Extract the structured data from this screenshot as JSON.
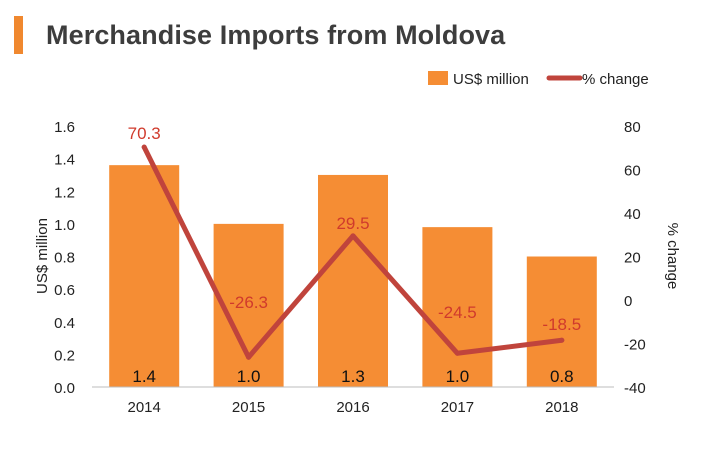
{
  "title": "Merchandise Imports from Moldova",
  "colors": {
    "accent": "#f0882f",
    "bar": "#f58d34",
    "line": "#c0443c",
    "line_label": "#d03a2c",
    "title": "#3d3d3d",
    "axis_text": "#222222"
  },
  "chart_data": {
    "type": "bar",
    "categories": [
      "2014",
      "2015",
      "2016",
      "2017",
      "2018"
    ],
    "series": [
      {
        "name": "US$ million",
        "type": "bar",
        "axis": "left",
        "values": [
          1.36,
          1.0,
          1.3,
          0.98,
          0.8
        ],
        "labels": [
          "1.4",
          "1.0",
          "1.3",
          "1.0",
          "0.8"
        ]
      },
      {
        "name": "% change",
        "type": "line",
        "axis": "right",
        "values": [
          70.3,
          -26.3,
          29.5,
          -24.5,
          -18.5
        ],
        "labels": [
          "70.3",
          "-26.3",
          "29.5",
          "-24.5",
          "-18.5"
        ]
      }
    ],
    "ylabel": "US$ million",
    "ylabel_right": "% change",
    "ylim": [
      0,
      1.6
    ],
    "ylim_right": [
      -40,
      80
    ],
    "yticks": [
      "0.0",
      "0.2",
      "0.4",
      "0.6",
      "0.8",
      "1.0",
      "1.2",
      "1.4",
      "1.6"
    ],
    "yticks_right": [
      "-40",
      "-20",
      "0",
      "20",
      "40",
      "60",
      "80"
    ],
    "legend": [
      {
        "label": "US$ million",
        "kind": "bar"
      },
      {
        "label": "% change",
        "kind": "line"
      }
    ],
    "legend_position": "top-right",
    "grid": false
  }
}
